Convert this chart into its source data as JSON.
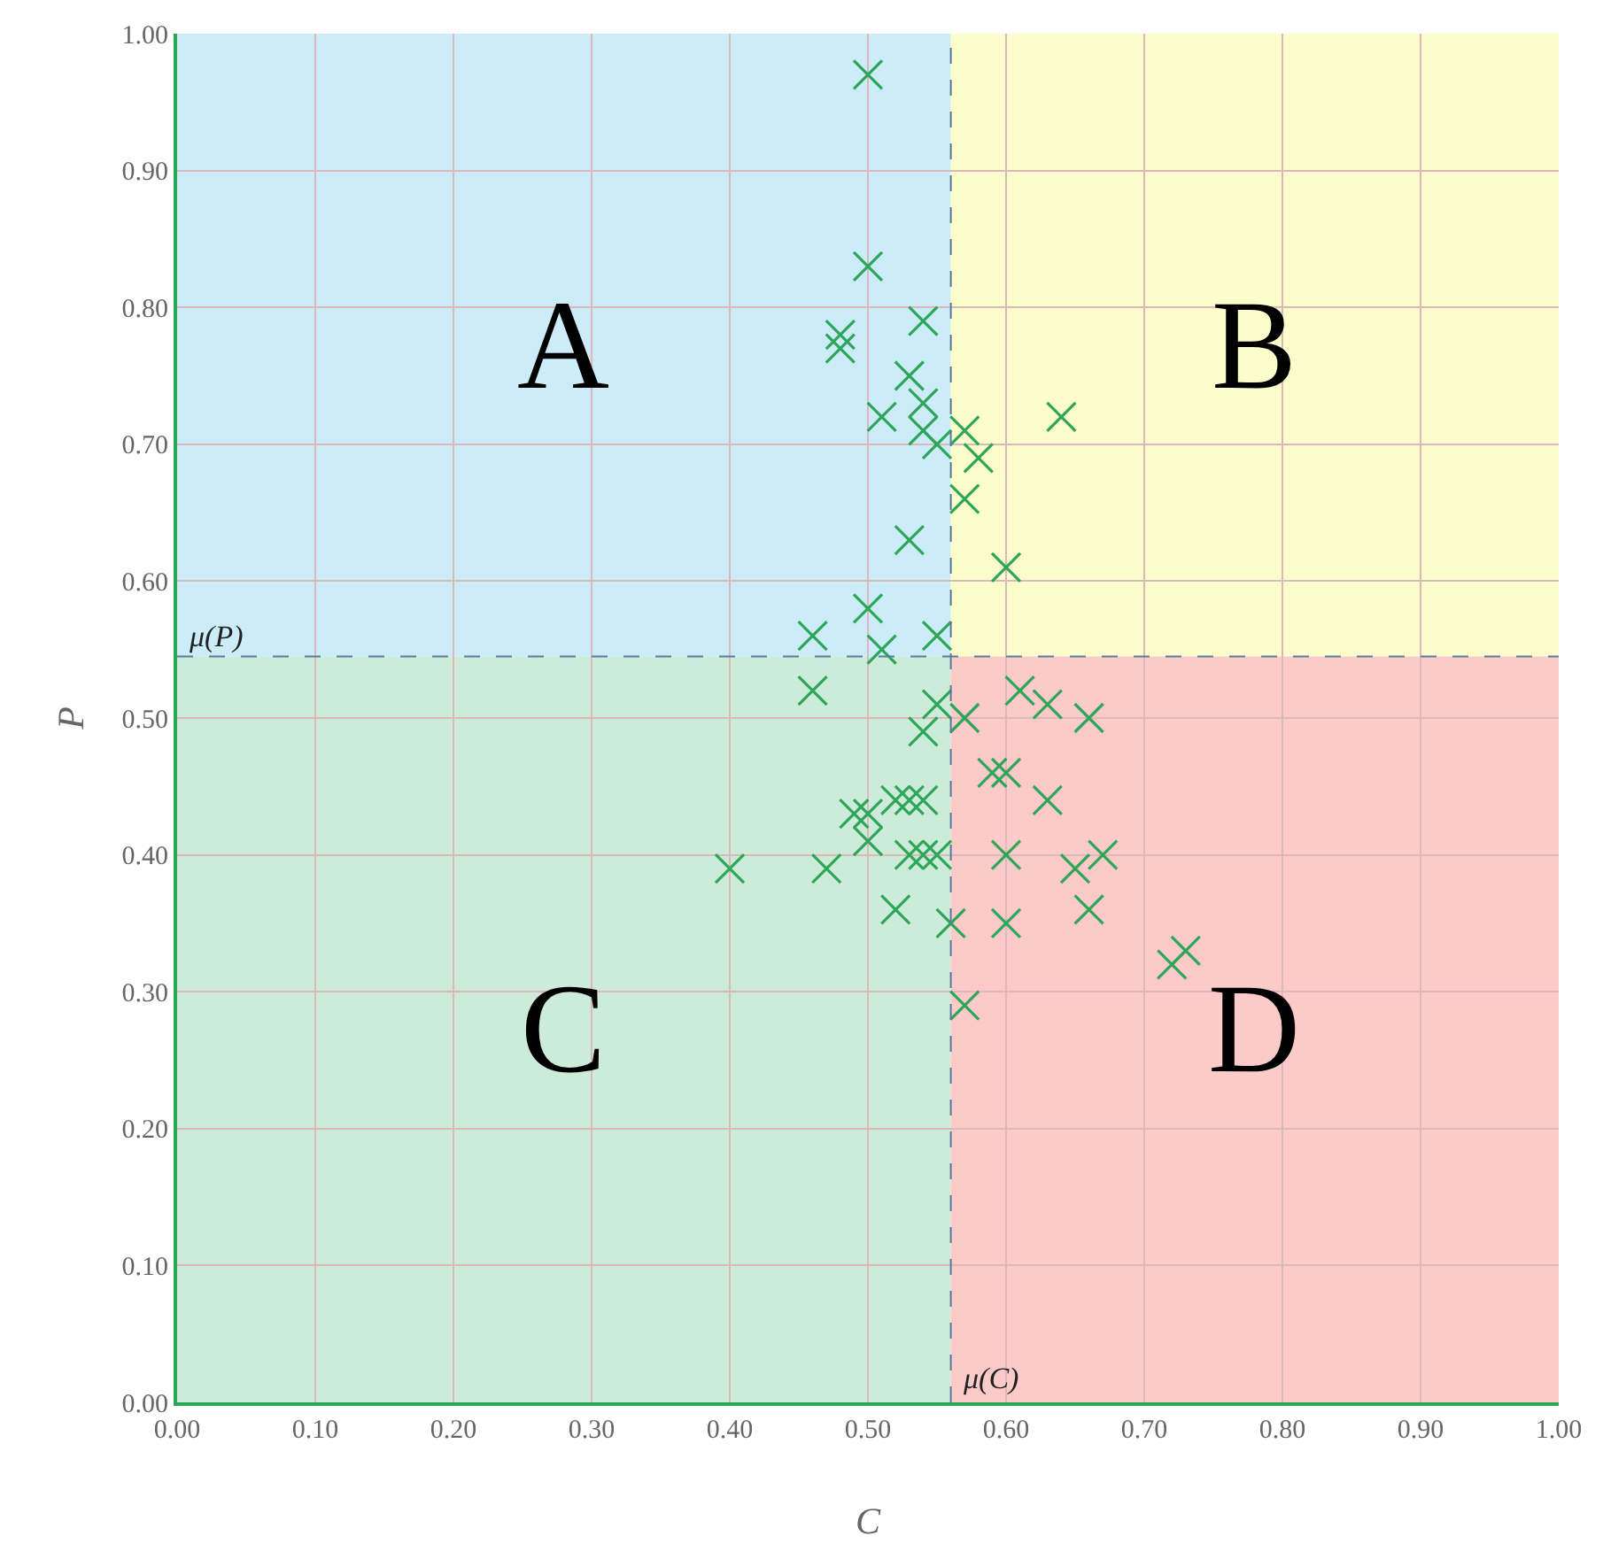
{
  "chart_data": {
    "type": "scatter",
    "xlabel": "C",
    "ylabel": "P",
    "marker": "cross",
    "grid": true,
    "xlim": [
      0,
      1
    ],
    "ylim": [
      0,
      1
    ],
    "xticks": [
      {
        "value": 0,
        "label": "0.00"
      },
      {
        "value": 0.1,
        "label": "0.10"
      },
      {
        "value": 0.2,
        "label": "0.20"
      },
      {
        "value": 0.3,
        "label": "0.30"
      },
      {
        "value": 0.4,
        "label": "0.40"
      },
      {
        "value": 0.5,
        "label": "0.50"
      },
      {
        "value": 0.6,
        "label": "0.60"
      },
      {
        "value": 0.7,
        "label": "0.70"
      },
      {
        "value": 0.8,
        "label": "0.80"
      },
      {
        "value": 0.9,
        "label": "0.90"
      },
      {
        "value": 1,
        "label": "1.00"
      }
    ],
    "yticks": [
      {
        "value": 0,
        "label": "0.00"
      },
      {
        "value": 0.1,
        "label": "0.10"
      },
      {
        "value": 0.2,
        "label": "0.20"
      },
      {
        "value": 0.3,
        "label": "0.30"
      },
      {
        "value": 0.4,
        "label": "0.40"
      },
      {
        "value": 0.5,
        "label": "0.50"
      },
      {
        "value": 0.6,
        "label": "0.60"
      },
      {
        "value": 0.7,
        "label": "0.70"
      },
      {
        "value": 0.8,
        "label": "0.80"
      },
      {
        "value": 0.9,
        "label": "0.90"
      },
      {
        "value": 1,
        "label": "1.00"
      }
    ],
    "series": [
      {
        "color": "#2ea65a",
        "x": [
          0.5,
          0.5,
          0.48,
          0.48,
          0.54,
          0.53,
          0.54,
          0.51,
          0.54,
          0.55,
          0.57,
          0.58,
          0.57,
          0.64,
          0.53,
          0.6,
          0.5,
          0.46,
          0.51,
          0.55,
          0.46,
          0.55,
          0.54,
          0.57,
          0.61,
          0.63,
          0.66,
          0.59,
          0.6,
          0.63,
          0.49,
          0.5,
          0.5,
          0.52,
          0.53,
          0.54,
          0.4,
          0.47,
          0.53,
          0.54,
          0.55,
          0.6,
          0.65,
          0.67,
          0.52,
          0.56,
          0.6,
          0.66,
          0.72,
          0.73,
          0.57
        ],
        "values": [
          0.97,
          0.83,
          0.78,
          0.77,
          0.79,
          0.75,
          0.73,
          0.72,
          0.71,
          0.7,
          0.71,
          0.69,
          0.66,
          0.72,
          0.63,
          0.61,
          0.58,
          0.56,
          0.55,
          0.56,
          0.52,
          0.51,
          0.49,
          0.5,
          0.52,
          0.51,
          0.5,
          0.46,
          0.46,
          0.44,
          0.43,
          0.43,
          0.41,
          0.44,
          0.44,
          0.44,
          0.39,
          0.39,
          0.4,
          0.4,
          0.4,
          0.4,
          0.39,
          0.4,
          0.36,
          0.35,
          0.35,
          0.36,
          0.32,
          0.33,
          0.29
        ]
      }
    ],
    "ref_lines": [
      {
        "axis": "x",
        "value": 0.56,
        "label": "μ(C)",
        "color": "#5a7a9a",
        "line_style": "dashed"
      },
      {
        "axis": "y",
        "value": 0.545,
        "label": "μ(P)",
        "color": "#5a7a9a",
        "line_style": "dashed"
      }
    ],
    "bands": [
      {
        "axis": "x",
        "from": 0,
        "to": 0.56,
        "label": "A",
        "color": "#cbecf8"
      },
      {
        "axis": "x",
        "from": 0.56,
        "to": 1,
        "label": "B",
        "color": "#fdfccb"
      },
      {
        "axis": "x",
        "from": 0,
        "to": 0.56,
        "label": "C",
        "color": "#cdebd9"
      },
      {
        "axis": "x",
        "from": 0.56,
        "to": 1,
        "label": "D",
        "color": "#fdcaca"
      }
    ]
  }
}
